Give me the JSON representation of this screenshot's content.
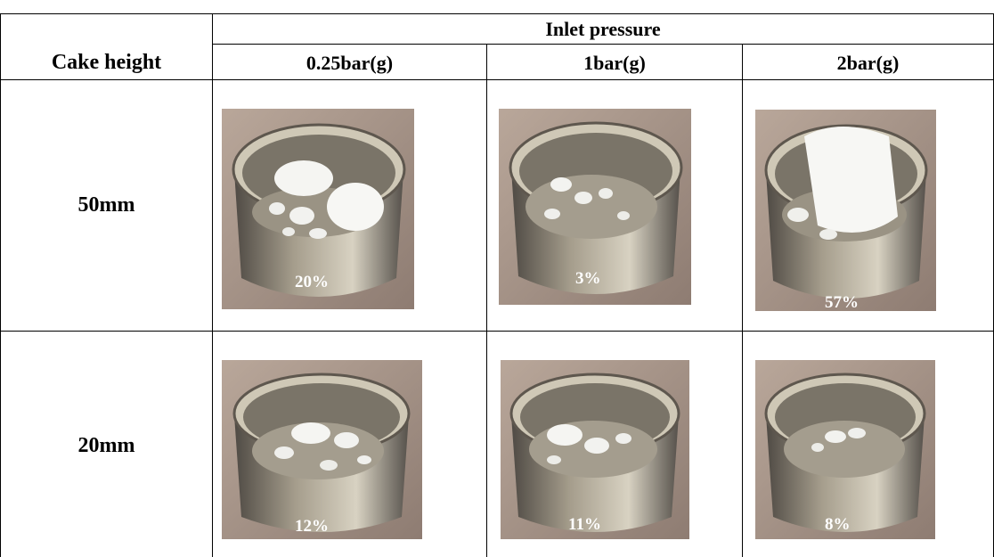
{
  "table": {
    "group_header": "Inlet pressure",
    "row_header": "Cake height",
    "columns": [
      "0.25bar(g)",
      "1bar(g)",
      "2bar(g)"
    ],
    "rows": [
      {
        "label": "50mm",
        "cells": [
          {
            "percent": "20%"
          },
          {
            "percent": "3%"
          },
          {
            "percent": "57%"
          }
        ]
      },
      {
        "label": "20mm",
        "cells": [
          {
            "percent": "12%"
          },
          {
            "percent": "11%"
          },
          {
            "percent": "8%"
          }
        ]
      }
    ]
  }
}
